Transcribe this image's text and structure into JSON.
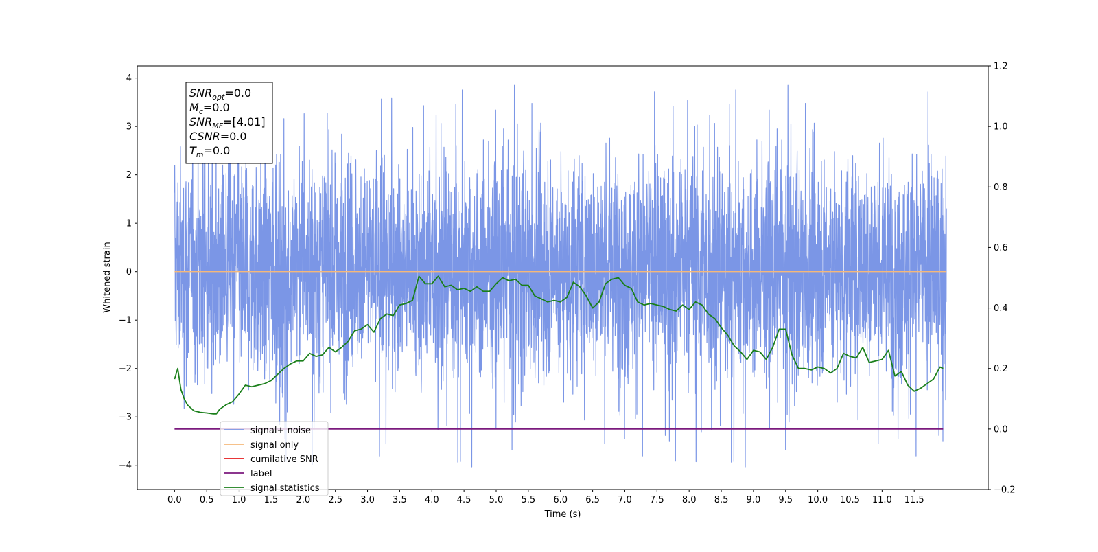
{
  "chart_data": {
    "type": "line",
    "xlabel": "Time (s)",
    "ylabel": "Whitened strain",
    "xlim": [
      -0.58,
      12.65
    ],
    "ylim": [
      -4.5,
      4.25
    ],
    "y2lim": [
      -0.2,
      1.2
    ],
    "x_ticks": [
      0.0,
      0.5,
      1.0,
      1.5,
      2.0,
      2.5,
      3.0,
      3.5,
      4.0,
      4.5,
      5.0,
      5.5,
      6.0,
      6.5,
      7.0,
      7.5,
      8.0,
      8.5,
      9.0,
      9.5,
      10.0,
      10.5,
      11.0,
      11.5
    ],
    "x_tick_labels": [
      "0.0",
      "0.5",
      "1.0",
      "1.5",
      "2.0",
      "2.5",
      "3.0",
      "3.5",
      "4.0",
      "4.5",
      "5.0",
      "5.5",
      "6.0",
      "6.5",
      "7.0",
      "7.5",
      "8.0",
      "8.5",
      "9.0",
      "9.5",
      "10.0",
      "10.5",
      "11.0",
      "11.5"
    ],
    "y_ticks": [
      4,
      3,
      2,
      1,
      0,
      -1,
      -2,
      -3,
      -4
    ],
    "y_tick_labels": [
      "4",
      "3",
      "2",
      "1",
      "0",
      "−1",
      "−2",
      "−3",
      "−4"
    ],
    "y2_ticks": [
      1.2,
      1.0,
      0.8,
      0.6,
      0.4,
      0.2,
      0.0,
      -0.2
    ],
    "y2_tick_labels": [
      "1.2",
      "1.0",
      "0.8",
      "0.6",
      "0.4",
      "0.2",
      "0.0",
      "−0.2"
    ],
    "grid": false,
    "legend_position": "lower-left",
    "annotation": {
      "lines": [
        {
          "main": "SNR",
          "sub": "opt",
          "value": "=0.0"
        },
        {
          "main": "M",
          "sub": "c",
          "value": "=0.0"
        },
        {
          "main": "SNR",
          "sub": "MF",
          "value": "=[4.01]"
        },
        {
          "main": "CSNR",
          "sub": "",
          "value": "=0.0"
        },
        {
          "main": "T",
          "sub": "m",
          "value": "=0.0"
        }
      ]
    },
    "series": [
      {
        "name": "signal+ noise",
        "color": "#7b96e6",
        "axis": "left",
        "x_range": [
          0.0,
          12.0
        ],
        "value_range": [
          -4.1,
          3.85
        ],
        "typical_band": [
          -2.0,
          2.2
        ]
      },
      {
        "name": "signal only",
        "color": "#f5b87a",
        "axis": "left",
        "x": [
          0.0,
          12.0
        ],
        "y": [
          0.0,
          0.0
        ]
      },
      {
        "name": "cumilative SNR",
        "color": "#e41a1c",
        "axis": "right",
        "x": [],
        "y": []
      },
      {
        "name": "label",
        "color": "#7b1a7e",
        "axis": "right",
        "x": [
          0.0,
          11.95
        ],
        "y": [
          0.0,
          0.0
        ]
      },
      {
        "name": "signal statistics",
        "color": "#1a7f1a",
        "axis": "right",
        "x": [
          0.0,
          0.05,
          0.1,
          0.15,
          0.2,
          0.3,
          0.4,
          0.5,
          0.6,
          0.65,
          0.7,
          0.8,
          0.9,
          1.0,
          1.1,
          1.2,
          1.3,
          1.4,
          1.5,
          1.6,
          1.7,
          1.8,
          1.9,
          2.0,
          2.1,
          2.2,
          2.3,
          2.4,
          2.5,
          2.6,
          2.7,
          2.8,
          2.9,
          3.0,
          3.1,
          3.2,
          3.3,
          3.4,
          3.5,
          3.6,
          3.7,
          3.8,
          3.9,
          4.0,
          4.1,
          4.2,
          4.3,
          4.4,
          4.5,
          4.6,
          4.7,
          4.8,
          4.9,
          5.0,
          5.1,
          5.2,
          5.3,
          5.4,
          5.5,
          5.6,
          5.7,
          5.8,
          5.9,
          6.0,
          6.1,
          6.2,
          6.3,
          6.4,
          6.5,
          6.6,
          6.7,
          6.8,
          6.9,
          7.0,
          7.1,
          7.2,
          7.3,
          7.4,
          7.5,
          7.6,
          7.7,
          7.8,
          7.9,
          8.0,
          8.1,
          8.2,
          8.3,
          8.4,
          8.5,
          8.6,
          8.7,
          8.8,
          8.9,
          9.0,
          9.1,
          9.2,
          9.3,
          9.4,
          9.5,
          9.6,
          9.7,
          9.8,
          9.9,
          10.0,
          10.1,
          10.2,
          10.3,
          10.4,
          10.5,
          10.6,
          10.7,
          10.8,
          10.9,
          11.0,
          11.1,
          11.2,
          11.3,
          11.4,
          11.5,
          11.6,
          11.7,
          11.8,
          11.9,
          11.95
        ],
        "y": [
          0.165,
          0.2,
          0.13,
          0.1,
          0.08,
          0.06,
          0.055,
          0.053,
          0.05,
          0.05,
          0.065,
          0.08,
          0.09,
          0.115,
          0.145,
          0.14,
          0.145,
          0.15,
          0.16,
          0.18,
          0.2,
          0.215,
          0.225,
          0.225,
          0.25,
          0.24,
          0.245,
          0.27,
          0.255,
          0.27,
          0.29,
          0.325,
          0.33,
          0.345,
          0.32,
          0.365,
          0.38,
          0.375,
          0.41,
          0.415,
          0.425,
          0.505,
          0.48,
          0.48,
          0.505,
          0.47,
          0.475,
          0.46,
          0.465,
          0.455,
          0.47,
          0.455,
          0.455,
          0.48,
          0.5,
          0.49,
          0.495,
          0.475,
          0.475,
          0.44,
          0.43,
          0.42,
          0.425,
          0.42,
          0.435,
          0.485,
          0.47,
          0.44,
          0.4,
          0.42,
          0.48,
          0.495,
          0.5,
          0.475,
          0.465,
          0.42,
          0.41,
          0.415,
          0.41,
          0.405,
          0.395,
          0.39,
          0.41,
          0.395,
          0.42,
          0.41,
          0.38,
          0.365,
          0.335,
          0.31,
          0.275,
          0.255,
          0.23,
          0.26,
          0.255,
          0.23,
          0.27,
          0.33,
          0.33,
          0.245,
          0.2,
          0.2,
          0.195,
          0.205,
          0.2,
          0.185,
          0.2,
          0.25,
          0.24,
          0.235,
          0.27,
          0.22,
          0.225,
          0.23,
          0.26,
          0.175,
          0.19,
          0.145,
          0.125,
          0.135,
          0.15,
          0.165,
          0.205,
          0.2
        ]
      }
    ]
  }
}
